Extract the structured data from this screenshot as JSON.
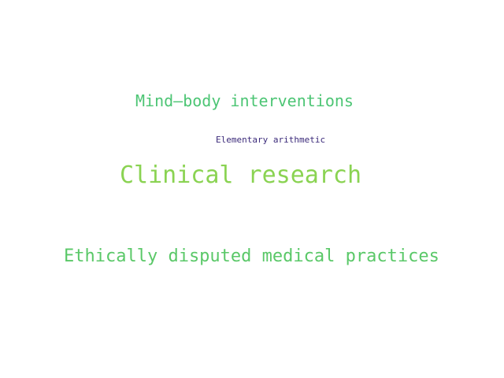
{
  "words": [
    {
      "text": "Mind–body interventions",
      "color": "#4cc574"
    },
    {
      "text": "Elementary arithmetic",
      "color": "#3b2a7a"
    },
    {
      "text": "Clinical research",
      "color": "#8ad352"
    },
    {
      "text": "Ethically disputed medical practices",
      "color": "#5ac868"
    }
  ]
}
